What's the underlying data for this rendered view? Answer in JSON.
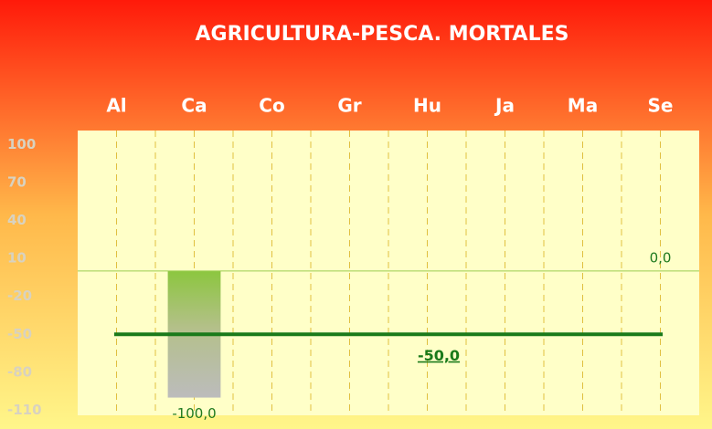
{
  "chart_data": {
    "type": "bar",
    "title": "AGRICULTURA-PESCA. MORTALES",
    "categories": [
      "Al",
      "Ca",
      "Co",
      "Gr",
      "Hu",
      "Ja",
      "Ma",
      "Se"
    ],
    "values": [
      null,
      -100,
      null,
      null,
      null,
      null,
      null,
      0
    ],
    "value_labels": [
      null,
      "-100,0",
      null,
      null,
      null,
      null,
      null,
      "0,0"
    ],
    "reference_line": {
      "value": -50,
      "label": "-50,0",
      "color": "#1a7a1a"
    },
    "ylim": [
      -114,
      111
    ],
    "yticks": [
      100,
      70,
      40,
      10,
      -20,
      -50,
      -80,
      -110
    ]
  }
}
